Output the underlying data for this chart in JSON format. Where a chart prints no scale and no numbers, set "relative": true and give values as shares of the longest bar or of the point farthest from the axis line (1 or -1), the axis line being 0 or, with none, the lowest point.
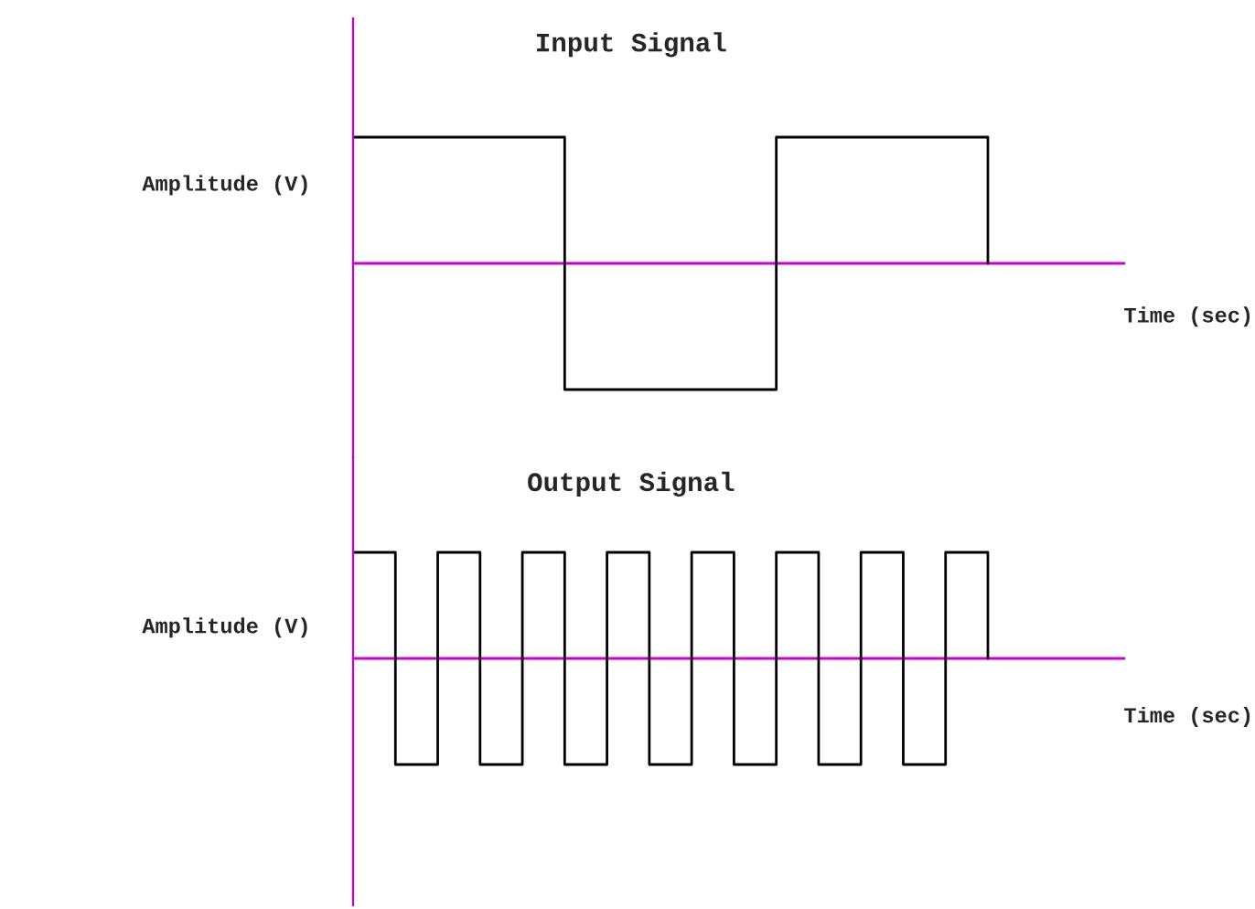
{
  "chart_data": [
    {
      "type": "step",
      "title": "Input Signal",
      "xlabel": "Time (sec)",
      "ylabel": "Amplitude (V)",
      "relative": true,
      "ref_lines": [
        {
          "axis": "y",
          "value": 0,
          "color": "#cc00cc"
        }
      ],
      "categories": [
        null,
        null,
        null,
        null
      ],
      "series": [
        {
          "color": "#000000",
          "values": [
            1,
            -1,
            1,
            0
          ]
        }
      ]
    },
    {
      "type": "step",
      "title": "Output Signal",
      "xlabel": "Time (sec)",
      "ylabel": "Amplitude (V)",
      "relative": true,
      "ref_lines": [
        {
          "axis": "y",
          "value": 0,
          "color": "#cc00cc"
        }
      ],
      "categories": [
        null,
        null,
        null,
        null,
        null,
        null,
        null,
        null,
        null,
        null,
        null,
        null,
        null,
        null,
        null,
        null
      ],
      "series": [
        {
          "color": "#000000",
          "values": [
            1,
            -1,
            1,
            -1,
            1,
            -1,
            1,
            -1,
            1,
            -1,
            1,
            -1,
            1,
            -1,
            1,
            0
          ]
        }
      ]
    }
  ]
}
